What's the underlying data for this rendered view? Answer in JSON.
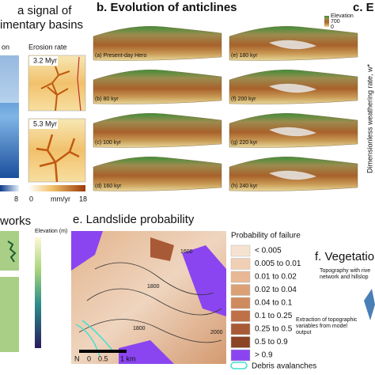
{
  "panel_a": {
    "title_lines": [
      "a signal of",
      "imentary basins"
    ],
    "left_caption": "on",
    "right_caption": "Erosion rate",
    "stages": [
      "3.2 Myr",
      "5.3 Myr"
    ],
    "left_scale_end": "8",
    "scale_start": "0",
    "unit": "mm/yr",
    "scale_end": "18"
  },
  "panel_b": {
    "title": "b. Evolution of anticlines",
    "strips": [
      "(a) Present-day Hero",
      "(b) 80 kyr",
      "(c) 100 kyr",
      "(d) 160 kyr",
      "(e) 180 kyr",
      "(f) 200 kyr",
      "(g) 220 kyr",
      "(h) 240 kyr"
    ],
    "legend": {
      "title": "Elevation",
      "high": "700",
      "low": "0"
    }
  },
  "panel_c": {
    "title": "c. E",
    "axis_label": "Dimensionless weathering rate, w*"
  },
  "panel_d": {
    "title": "works",
    "colorbar_label": "Elevation (m)"
  },
  "panel_e": {
    "title": "e. Landslide probability",
    "legend_title": "Probability of failure",
    "legend": [
      {
        "label": "< 0.005",
        "color": "#f6e2d0"
      },
      {
        "label": "0.005 to 0.01",
        "color": "#f1cfb5"
      },
      {
        "label": "0.01 to 0.02",
        "color": "#e8b896"
      },
      {
        "label": "0.02 to 0.04",
        "color": "#dca077"
      },
      {
        "label": "0.04 to 0.1",
        "color": "#cf8a5e"
      },
      {
        "label": "0.1 to 0.25",
        "color": "#bf7047"
      },
      {
        "label": "0.25 to 0.5",
        "color": "#a85a36"
      },
      {
        "label": "0.5 to 0.9",
        "color": "#8b4424"
      },
      {
        "label": "> 0.9",
        "color": "#8a45f0"
      }
    ],
    "debris": "Debris avalanches",
    "contours": [
      "1800",
      "2000",
      "1600",
      "1800"
    ],
    "scale": [
      "0",
      "0.5",
      "1 km"
    ],
    "north": "N"
  },
  "panel_f": {
    "title": "f. Vegetatio",
    "note_top": [
      "Topography with rive",
      "network and hillslop"
    ],
    "note_bottom": [
      "Extraction of topographic",
      "variables from model",
      "output"
    ]
  }
}
